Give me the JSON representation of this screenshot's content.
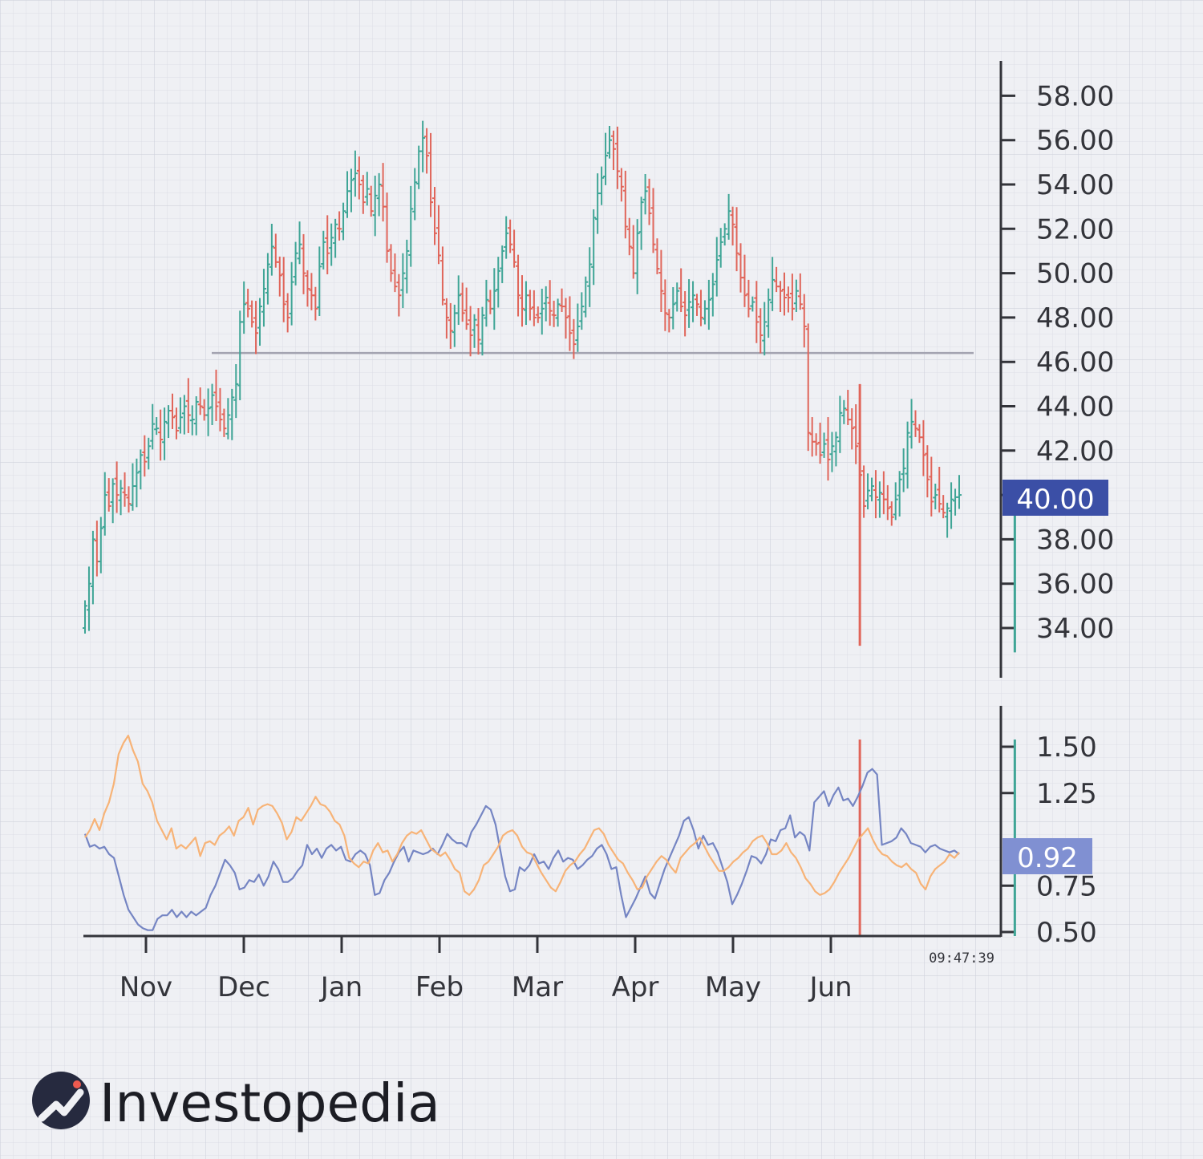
{
  "chart_data": [
    {
      "type": "ohlc-bar",
      "y_ticks": [
        "34.00",
        "36.00",
        "38.00",
        "40.00",
        "42.00",
        "44.00",
        "46.00",
        "48.00",
        "50.00",
        "52.00",
        "54.00",
        "56.00",
        "58.00"
      ],
      "ylim": [
        32.5,
        59.5
      ],
      "x_labels": [
        "Nov",
        "Dec",
        "Jan",
        "Feb",
        "Mar",
        "Apr",
        "May",
        "Jun"
      ],
      "current_value": "40.00",
      "neckline": 46.4,
      "colors": {
        "up": "#3fa596",
        "down": "#e0655a",
        "neckline": "#a3a3b0",
        "badge": "#3b4fa6"
      },
      "closes": [
        35.0,
        36.0,
        38.0,
        37.0,
        38.5,
        40.0,
        39.5,
        40.5,
        40.0,
        40.3,
        40.0,
        39.6,
        40.4,
        41.0,
        41.8,
        41.5,
        42.2,
        43.2,
        43.0,
        42.5,
        43.3,
        43.8,
        43.5,
        42.9,
        43.5,
        44.0,
        43.6,
        43.4,
        44.2,
        44.0,
        43.6,
        43.9,
        44.5,
        44.0,
        43.4,
        43.0,
        43.6,
        44.4,
        45.0,
        47.8,
        48.6,
        48.4,
        47.8,
        47.3,
        48.5,
        49.3,
        50.4,
        51.2,
        50.5,
        49.9,
        48.6,
        48.0,
        49.6,
        50.9,
        51.3,
        50.0,
        49.3,
        49.0,
        48.4,
        50.3,
        51.4,
        50.9,
        51.6,
        52.2,
        52.0,
        52.8,
        53.7,
        54.2,
        54.5,
        54.0,
        53.2,
        53.8,
        52.8,
        53.5,
        54.0,
        53.0,
        51.0,
        50.0,
        49.4,
        49.0,
        50.0,
        51.0,
        52.9,
        54.1,
        55.5,
        56.1,
        55.3,
        53.2,
        51.8,
        50.8,
        48.8,
        48.0,
        47.4,
        48.2,
        49.0,
        48.2,
        47.7,
        47.2,
        47.9,
        47.0,
        48.1,
        48.8,
        48.4,
        49.2,
        50.1,
        51.0,
        51.8,
        51.3,
        50.5,
        49.0,
        48.4,
        49.0,
        48.4,
        48.0,
        48.0,
        48.4,
        48.9,
        48.3,
        48.1,
        48.6,
        48.5,
        48.0,
        47.3,
        46.8,
        47.6,
        48.5,
        49.6,
        50.4,
        52.5,
        53.6,
        54.3,
        55.3,
        56.0,
        55.6,
        54.6,
        53.9,
        52.1,
        51.2,
        50.0,
        51.8,
        53.2,
        53.7,
        52.7,
        51.3,
        50.2,
        49.2,
        48.2,
        48.0,
        48.6,
        49.2,
        48.5,
        48.1,
        48.7,
        49.0,
        48.6,
        48.0,
        48.4,
        48.8,
        49.5,
        50.6,
        51.4,
        52.0,
        52.8,
        52.2,
        50.9,
        49.8,
        49.0,
        48.4,
        48.7,
        47.8,
        47.2,
        47.8,
        48.8,
        49.7,
        49.4,
        49.2,
        48.9,
        48.9,
        48.4,
        49.2,
        48.6,
        47.6,
        42.8,
        42.4,
        42.3,
        41.8,
        42.3,
        41.6,
        42.2,
        42.6,
        43.7,
        43.9,
        43.4,
        43.0,
        42.2,
        40.9,
        39.5,
        40.2,
        40.4,
        39.9,
        40.1,
        39.8,
        39.4,
        39.0,
        39.8,
        40.7,
        41.2,
        42.8,
        43.3,
        43.0,
        42.6,
        41.8,
        40.7,
        39.7,
        40.0,
        39.6,
        39.2,
        39.4,
        39.8,
        39.9,
        40.0
      ],
      "big_bars": [
        {
          "index": 195,
          "top": 45.0,
          "bottom": 33.2,
          "color": "#e0655a"
        },
        {
          "index": 234,
          "top": 39.3,
          "bottom": 32.9,
          "color": "#3fa596"
        }
      ]
    },
    {
      "type": "line",
      "y_ticks": [
        "0.50",
        "0.75",
        "1.25",
        "1.50"
      ],
      "ylim": [
        0.5,
        1.5
      ],
      "current_value": "0.92",
      "colors": {
        "blue": "#7585c3",
        "orange": "#f7b377",
        "badge": "#8090d2"
      },
      "series": [
        {
          "name": "",
          "color": "#7585c3",
          "values": [
            1.03,
            0.96,
            0.97,
            0.95,
            0.96,
            0.92,
            0.9,
            0.8,
            0.7,
            0.62,
            0.58,
            0.54,
            0.52,
            0.51,
            0.51,
            0.57,
            0.59,
            0.59,
            0.62,
            0.58,
            0.61,
            0.58,
            0.61,
            0.59,
            0.61,
            0.63,
            0.7,
            0.75,
            0.82,
            0.89,
            0.86,
            0.82,
            0.73,
            0.74,
            0.78,
            0.77,
            0.81,
            0.75,
            0.8,
            0.88,
            0.84,
            0.77,
            0.77,
            0.79,
            0.83,
            0.86,
            0.97,
            0.92,
            0.95,
            0.9,
            0.95,
            0.97,
            0.94,
            0.96,
            0.89,
            0.88,
            0.92,
            0.94,
            0.92,
            0.86,
            0.7,
            0.71,
            0.78,
            0.82,
            0.88,
            0.93,
            0.96,
            0.88,
            0.94,
            0.93,
            0.92,
            0.93,
            0.95,
            0.92,
            0.97,
            1.03,
            1.0,
            0.98,
            0.98,
            0.96,
            1.04,
            1.08,
            1.13,
            1.18,
            1.16,
            1.08,
            0.94,
            0.8,
            0.72,
            0.73,
            0.85,
            0.83,
            0.86,
            0.92,
            0.87,
            0.88,
            0.84,
            0.9,
            0.94,
            0.88,
            0.9,
            0.89,
            0.84,
            0.86,
            0.89,
            0.91,
            0.95,
            0.97,
            0.92,
            0.84,
            0.85,
            0.7,
            0.58,
            0.63,
            0.68,
            0.74,
            0.8,
            0.71,
            0.68,
            0.76,
            0.84,
            0.9,
            0.96,
            1.02,
            1.1,
            1.12,
            1.05,
            0.95,
            1.02,
            0.97,
            0.98,
            0.93,
            0.85,
            0.77,
            0.65,
            0.7,
            0.76,
            0.83,
            0.91,
            0.9,
            0.87,
            0.92,
            1.0,
            0.99,
            1.05,
            1.06,
            1.13,
            1.01,
            1.04,
            1.02,
            0.94,
            1.2,
            1.23,
            1.26,
            1.18,
            1.24,
            1.28,
            1.21,
            1.22,
            1.18,
            1.23,
            1.29,
            1.36,
            1.38,
            1.35,
            0.97,
            0.98,
            0.99,
            1.01,
            1.06,
            1.03,
            0.98,
            0.97,
            0.96,
            0.93,
            0.96,
            0.97,
            0.95,
            0.94,
            0.93,
            0.94,
            0.92
          ]
        },
        {
          "name": "",
          "color": "#f7b377",
          "values": [
            1.01,
            1.05,
            1.11,
            1.05,
            1.14,
            1.2,
            1.3,
            1.46,
            1.52,
            1.56,
            1.48,
            1.42,
            1.3,
            1.26,
            1.2,
            1.1,
            1.05,
            1.0,
            1.06,
            0.95,
            0.97,
            0.95,
            0.98,
            1.01,
            0.91,
            0.98,
            0.99,
            0.97,
            1.02,
            1.04,
            1.07,
            1.02,
            1.1,
            1.12,
            1.17,
            1.08,
            1.16,
            1.18,
            1.19,
            1.18,
            1.14,
            1.09,
            1.0,
            1.04,
            1.12,
            1.1,
            1.14,
            1.18,
            1.23,
            1.19,
            1.18,
            1.15,
            1.1,
            1.08,
            1.02,
            0.9,
            0.87,
            0.85,
            0.88,
            0.87,
            0.94,
            0.98,
            0.93,
            0.94,
            0.88,
            0.92,
            0.98,
            1.02,
            1.04,
            1.03,
            1.05,
            1.0,
            0.95,
            0.93,
            0.91,
            0.93,
            0.89,
            0.84,
            0.82,
            0.72,
            0.7,
            0.73,
            0.78,
            0.86,
            0.88,
            0.92,
            0.96,
            1.02,
            1.04,
            1.05,
            1.02,
            0.96,
            0.93,
            0.92,
            0.87,
            0.82,
            0.78,
            0.74,
            0.72,
            0.77,
            0.83,
            0.86,
            0.88,
            0.92,
            0.95,
            1.0,
            1.05,
            1.06,
            1.03,
            0.97,
            0.93,
            0.89,
            0.87,
            0.82,
            0.78,
            0.73,
            0.74,
            0.8,
            0.84,
            0.88,
            0.91,
            0.89,
            0.85,
            0.82,
            0.9,
            0.93,
            0.96,
            0.98,
            1.01,
            0.96,
            0.91,
            0.87,
            0.83,
            0.83,
            0.85,
            0.88,
            0.9,
            0.93,
            0.95,
            0.99,
            1.01,
            1.02,
            0.98,
            0.92,
            0.92,
            0.94,
            0.98,
            0.93,
            0.9,
            0.85,
            0.79,
            0.76,
            0.72,
            0.7,
            0.71,
            0.73,
            0.77,
            0.82,
            0.86,
            0.9,
            0.95,
            1.0,
            1.03,
            1.06,
            1.0,
            0.95,
            0.92,
            0.91,
            0.88,
            0.86,
            0.85,
            0.87,
            0.84,
            0.82,
            0.76,
            0.73,
            0.8,
            0.84,
            0.86,
            0.88,
            0.92,
            0.9,
            0.93
          ]
        }
      ],
      "big_bars": [
        {
          "index": 195,
          "color": "#e0655a"
        },
        {
          "index": 234,
          "color": "#3fa596"
        }
      ]
    }
  ],
  "footer": {
    "timestamp": "09:47:39",
    "logo_text": "Investopedia"
  }
}
